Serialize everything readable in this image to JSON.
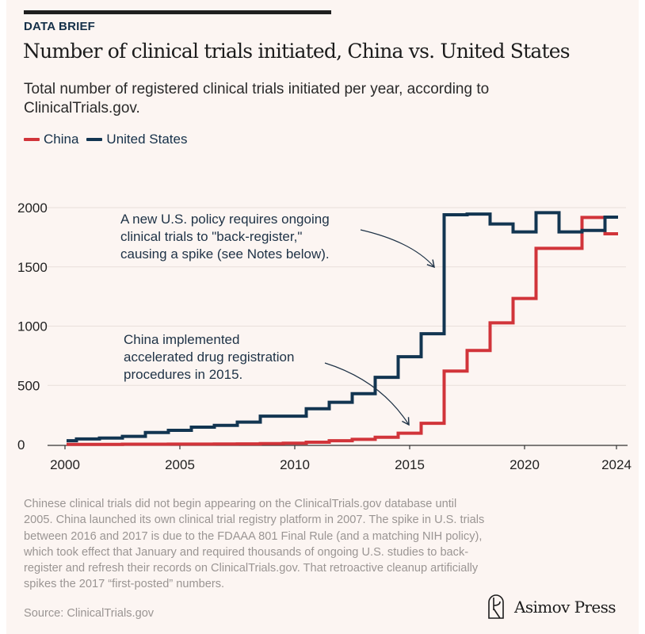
{
  "header": {
    "kicker": "DATA BRIEF",
    "title": "Number of clinical trials initiated, China vs. United States",
    "subtitle": "Total number of registered clinical trials initiated per year, according to ClinicalTrials.gov."
  },
  "chart_data": {
    "type": "line",
    "step": "mid",
    "x": [
      2000,
      2001,
      2002,
      2003,
      2004,
      2005,
      2006,
      2007,
      2008,
      2009,
      2010,
      2011,
      2012,
      2013,
      2014,
      2015,
      2016,
      2017,
      2018,
      2019,
      2020,
      2021,
      2022,
      2023,
      2024
    ],
    "series": [
      {
        "name": "China",
        "color": "#d1343a",
        "values": [
          2,
          2,
          2,
          3,
          3,
          4,
          4,
          5,
          6,
          8,
          12,
          20,
          33,
          44,
          62,
          96,
          180,
          620,
          794,
          1028,
          1233,
          1656,
          1656,
          1917,
          1779
        ]
      },
      {
        "name": "United States",
        "color": "#123551",
        "values": [
          33,
          48,
          55,
          69,
          102,
          120,
          147,
          162,
          190,
          240,
          240,
          303,
          357,
          430,
          568,
          742,
          936,
          1940,
          1946,
          1862,
          1795,
          1957,
          1795,
          1808,
          1920
        ]
      }
    ],
    "xlim": [
      2000,
      2024
    ],
    "ylim": [
      0,
      2000
    ],
    "xticks": [
      "2000",
      "2005",
      "2010",
      "2015",
      "2020",
      "2024"
    ],
    "yticks": [
      "0",
      "500",
      "1000",
      "1500",
      "2000"
    ],
    "grid": "horizontal",
    "legend": "top-left",
    "annotations": [
      {
        "lines": [
          "A new U.S. policy requires ongoing",
          "clinical trials to \"back-register,\"",
          "causing a spike (see Notes below)."
        ],
        "target_year": 2016.6,
        "target_value": 1500
      },
      {
        "lines": [
          "China implemented",
          "accelerated drug registration",
          "procedures in 2015."
        ],
        "target_year": 2015,
        "target_value": 160
      }
    ]
  },
  "footer": {
    "notes": "Chinese clinical trials did not begin appearing on the ClinicalTrials.gov database until 2005. China launched its own clinical trial registry platform in 2007. The spike in U.S. trials between 2016 and 2017 is due to the FDAAA 801 Final Rule (and a matching NIH policy), which took effect that January and required thousands of ongoing U.S. studies to back-register and refresh their records on ClinicalTrials.gov. That retroactive cleanup artificially spikes the 2017 “first-posted” numbers.",
    "source": "Source: ClinicalTrials.gov",
    "brand": "Asimov Press"
  },
  "colors": {
    "background": "#fcf5f2",
    "china": "#d1343a",
    "us": "#123551"
  }
}
